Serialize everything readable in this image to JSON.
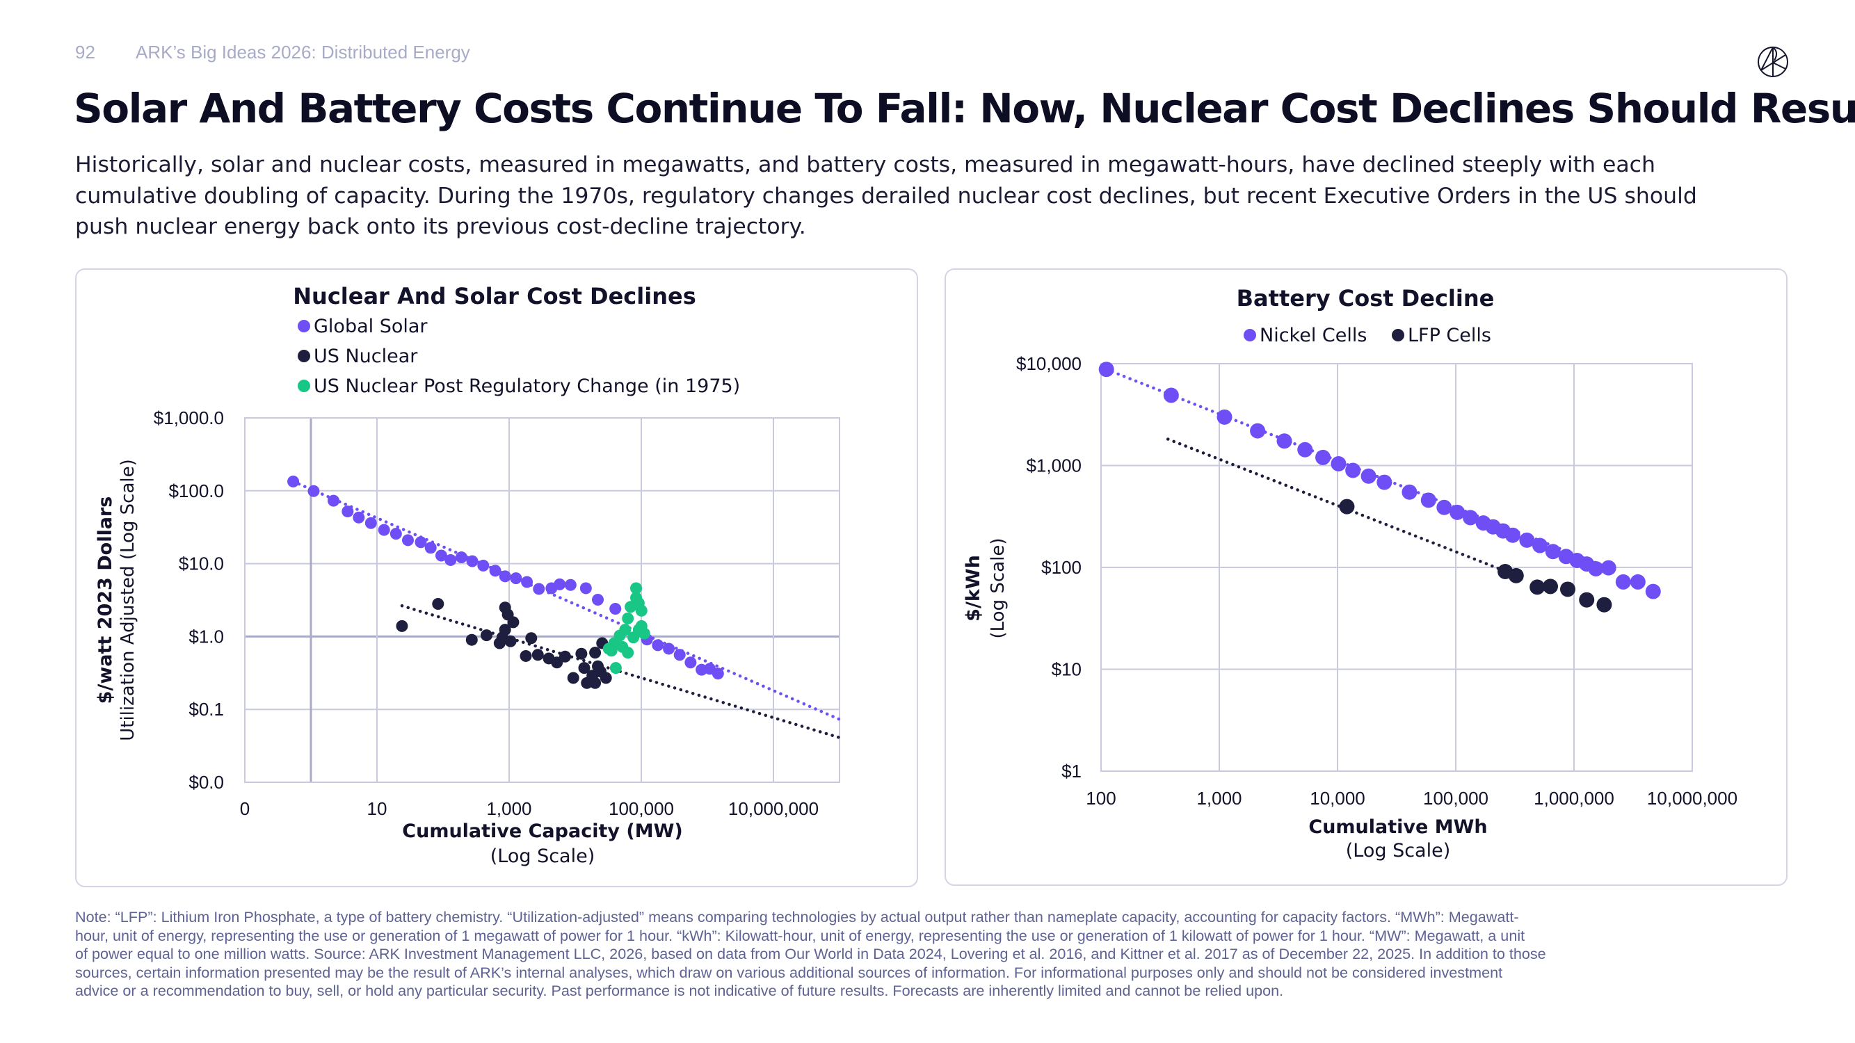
{
  "header": {
    "page_number": "92",
    "section": "ARK’s Big Ideas 2026: Distributed Energy",
    "logo_icon": "ark-logo-icon"
  },
  "title": "Solar And Battery Costs Continue To Fall: Now, Nuclear Cost Declines Should Resume",
  "subtitle_lines": [
    "Historically, solar and nuclear costs, measured in megawatts, and battery costs, measured in megawatt-hours, have declined steeply with each",
    "cumulative doubling of capacity. During the 1970s, regulatory changes derailed nuclear cost declines, but recent Executive Orders in the US should",
    "push nuclear energy back onto its previous cost-decline trajectory."
  ],
  "footnote_lines": [
    "Note: “LFP”: Lithium Iron Phosphate, a type of battery chemistry. “Utilization-adjusted” means comparing technologies by actual output rather than nameplate capacity, accounting for capacity factors. “MWh”: Megawatt-",
    "hour, unit of energy, representing the use or generation of 1 megawatt of power for 1 hour. “kWh”: Kilowatt-hour, unit of energy, representing the use or generation of 1 kilowatt of power for 1 hour. “MW”: Megawatt, a unit",
    "of power equal to one million watts. Source: ARK Investment Management LLC, 2026, based on data from Our World in Data 2024, Lovering et al. 2016, and Kittner et al. 2017 as of December 22, 2025. In addition to those",
    "sources, certain information presented may be the result of ARK’s internal analyses, which draw on various additional sources of information. For informational purposes only and should not be considered investment",
    "advice or a recommendation to buy, sell, or hold any particular security. Past performance is not indicative of future results. Forecasts are inherently limited and cannot be relied upon."
  ],
  "colors": {
    "purple": "#6f4ef6",
    "navy": "#1e1e3f",
    "green": "#18c785",
    "grid": "#c9cade",
    "grid_strong": "#a9abc6"
  },
  "chart_data": [
    {
      "type": "scatter",
      "title": "Nuclear And Solar Cost Declines",
      "xlabel": "Cumulative Capacity (MW)",
      "xlabel_sub": "(Log Scale)",
      "ylabel": "$/watt 2023 Dollars",
      "ylabel_sub": "Utilization Adjusted (Log Scale)",
      "x_scale": "log",
      "y_scale": "log",
      "xlim": [
        0.1,
        100000000
      ],
      "ylim": [
        0.01,
        1000
      ],
      "grid": true,
      "legend_position": "top-left",
      "x_ticks": [
        {
          "value": 0.1,
          "label": "0"
        },
        {
          "value": 1,
          "label": ""
        },
        {
          "value": 10,
          "label": "10"
        },
        {
          "value": 1000,
          "label": "1,000"
        },
        {
          "value": 100000,
          "label": "100,000"
        },
        {
          "value": 10000000,
          "label": "10,000,000"
        }
      ],
      "y_ticks": [
        {
          "value": 1000,
          "label": "$1,000.0"
        },
        {
          "value": 100,
          "label": "$100.0"
        },
        {
          "value": 10,
          "label": "$10.0"
        },
        {
          "value": 1,
          "label": "$1.0"
        },
        {
          "value": 0.1,
          "label": "$0.1"
        },
        {
          "value": 0.01,
          "label": "$0.0"
        }
      ],
      "series": [
        {
          "name": "Global Solar",
          "color": "#6f4ef6",
          "points": [
            [
              0.54,
              134
            ],
            [
              1.1,
              99
            ],
            [
              2.2,
              73
            ],
            [
              3.6,
              52
            ],
            [
              5.3,
              43
            ],
            [
              8.1,
              36
            ],
            [
              12.8,
              29
            ],
            [
              19.4,
              25.7
            ],
            [
              29.4,
              21
            ],
            [
              46,
              19.7
            ],
            [
              65,
              16.5
            ],
            [
              94,
              12.9
            ],
            [
              130,
              11.2
            ],
            [
              190,
              12.2
            ],
            [
              277,
              10.8
            ],
            [
              406,
              9.4
            ],
            [
              617,
              8.0
            ],
            [
              869,
              6.7
            ],
            [
              1270,
              6.3
            ],
            [
              1860,
              5.6
            ],
            [
              2820,
              4.5
            ],
            [
              4370,
              4.6
            ],
            [
              5820,
              5.2
            ],
            [
              8510,
              5.1
            ],
            [
              14500,
              4.6
            ],
            [
              22000,
              3.2
            ],
            [
              40500,
              2.4
            ],
            [
              122000,
              0.91
            ],
            [
              178000,
              0.76
            ],
            [
              261000,
              0.68
            ],
            [
              381000,
              0.56
            ],
            [
              557000,
              0.44
            ],
            [
              817000,
              0.35
            ],
            [
              1090000,
              0.36
            ],
            [
              1450000,
              0.31
            ]
          ],
          "trend": [
            [
              0.54,
              134
            ],
            [
              100000000,
              0.073
            ]
          ]
        },
        {
          "name": "US Nuclear",
          "color": "#1e1e3f",
          "points": [
            [
              23.9,
              1.39
            ],
            [
              84,
              2.8
            ],
            [
              272,
              0.9
            ],
            [
              455,
              1.04
            ],
            [
              718,
              0.81
            ],
            [
              869,
              2.5
            ],
            [
              955,
              2.0
            ],
            [
              1155,
              1.57
            ],
            [
              869,
              1.24
            ],
            [
              791,
              0.97
            ],
            [
              1050,
              0.86
            ],
            [
              2160,
              0.95
            ],
            [
              1790,
              0.54
            ],
            [
              2720,
              0.56
            ],
            [
              3980,
              0.5
            ],
            [
              5290,
              0.44
            ],
            [
              7030,
              0.53
            ],
            [
              9350,
              0.27
            ],
            [
              12400,
              0.58
            ],
            [
              13700,
              0.37
            ],
            [
              15000,
              0.23
            ],
            [
              18200,
              0.29
            ],
            [
              20000,
              0.23
            ],
            [
              24200,
              0.33
            ],
            [
              29200,
              0.27
            ],
            [
              20000,
              0.6
            ],
            [
              25600,
              0.81
            ],
            [
              22000,
              0.39
            ]
          ],
          "trend": [
            [
              23.9,
              2.64
            ],
            [
              100000000,
              0.041
            ]
          ]
        },
        {
          "name": "US Nuclear Post Regulatory Change (in 1975)",
          "color": "#18c785",
          "points": [
            [
              41200,
              0.37
            ],
            [
              32200,
              0.68
            ],
            [
              38900,
              0.81
            ],
            [
              47100,
              1.03
            ],
            [
              57000,
              1.24
            ],
            [
              62600,
              1.77
            ],
            [
              68900,
              2.55
            ],
            [
              83400,
              3.4
            ],
            [
              83400,
              4.6
            ],
            [
              91600,
              2.87
            ],
            [
              100700,
              2.26
            ],
            [
              91600,
              1.24
            ],
            [
              51800,
              0.72
            ],
            [
              62600,
              0.6
            ],
            [
              35400,
              0.64
            ],
            [
              100700,
              1.39
            ],
            [
              75900,
              0.97
            ],
            [
              111000,
              1.1
            ]
          ]
        }
      ]
    },
    {
      "type": "scatter",
      "title": "Battery Cost Decline",
      "xlabel": "Cumulative MWh",
      "xlabel_sub": "(Log Scale)",
      "ylabel": "$/kWh",
      "ylabel_sub": "(Log Scale)",
      "x_scale": "log",
      "y_scale": "log",
      "xlim": [
        100,
        10000000
      ],
      "ylim": [
        1,
        10000
      ],
      "grid": true,
      "legend_position": "top-center",
      "x_ticks": [
        {
          "value": 100,
          "label": "100"
        },
        {
          "value": 1000,
          "label": "1,000"
        },
        {
          "value": 10000,
          "label": "10,000"
        },
        {
          "value": 100000,
          "label": "100,000"
        },
        {
          "value": 1000000,
          "label": "1,000,000"
        },
        {
          "value": 10000000,
          "label": "10,000,000"
        }
      ],
      "y_ticks": [
        {
          "value": 10000,
          "label": "$10,000"
        },
        {
          "value": 1000,
          "label": "$1,000"
        },
        {
          "value": 100,
          "label": "$100"
        },
        {
          "value": 10,
          "label": "$10"
        },
        {
          "value": 1,
          "label": "$1"
        }
      ],
      "series": [
        {
          "name": "Nickel Cells",
          "color": "#6f4ef6",
          "points": [
            [
              111,
              8790
            ],
            [
              392,
              4890
            ],
            [
              1107,
              2990
            ],
            [
              2110,
              2190
            ],
            [
              3550,
              1740
            ],
            [
              5310,
              1430
            ],
            [
              7530,
              1200
            ],
            [
              10200,
              1040
            ],
            [
              13500,
              896
            ],
            [
              18300,
              787
            ],
            [
              24900,
              685
            ],
            [
              40600,
              548
            ],
            [
              58800,
              457
            ],
            [
              79800,
              388
            ],
            [
              103000,
              347
            ],
            [
              133000,
              308
            ],
            [
              171000,
              273
            ],
            [
              207000,
              250
            ],
            [
              251000,
              228
            ],
            [
              303000,
              207
            ],
            [
              400000,
              185
            ],
            [
              515000,
              164
            ],
            [
              664000,
              143
            ],
            [
              857000,
              128
            ],
            [
              1060000,
              117
            ],
            [
              1280000,
              108
            ],
            [
              1530000,
              97
            ],
            [
              1960000,
              99
            ],
            [
              2610000,
              72
            ],
            [
              3470000,
              72
            ],
            [
              4670000,
              58
            ]
          ],
          "trend": [
            [
              111,
              8790
            ],
            [
              1960000,
              99
            ]
          ]
        },
        {
          "name": "LFP Cells",
          "color": "#1e1e3f",
          "points": [
            [
              12000,
              395
            ],
            [
              262000,
              91
            ],
            [
              324000,
              83
            ],
            [
              489000,
              64
            ],
            [
              631000,
              65
            ],
            [
              885000,
              61
            ],
            [
              1280000,
              48
            ],
            [
              1800000,
              43
            ]
          ],
          "trend": [
            [
              368,
              1816
            ],
            [
              262000,
              92
            ]
          ]
        }
      ]
    }
  ]
}
